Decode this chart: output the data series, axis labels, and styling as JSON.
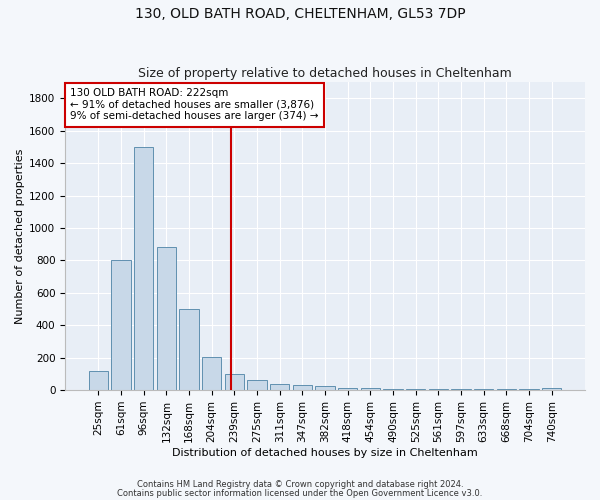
{
  "title1": "130, OLD BATH ROAD, CHELTENHAM, GL53 7DP",
  "title2": "Size of property relative to detached houses in Cheltenham",
  "xlabel": "Distribution of detached houses by size in Cheltenham",
  "ylabel": "Number of detached properties",
  "categories": [
    "25sqm",
    "61sqm",
    "96sqm",
    "132sqm",
    "168sqm",
    "204sqm",
    "239sqm",
    "275sqm",
    "311sqm",
    "347sqm",
    "382sqm",
    "418sqm",
    "454sqm",
    "490sqm",
    "525sqm",
    "561sqm",
    "597sqm",
    "633sqm",
    "668sqm",
    "704sqm",
    "740sqm"
  ],
  "values": [
    120,
    800,
    1500,
    880,
    500,
    205,
    100,
    65,
    40,
    30,
    25,
    10,
    10,
    5,
    5,
    5,
    5,
    5,
    5,
    5,
    10
  ],
  "bar_color": "#c8d8e8",
  "bar_edge_color": "#6090b0",
  "vline_color": "#cc0000",
  "annotation_text": "130 OLD BATH ROAD: 222sqm\n← 91% of detached houses are smaller (3,876)\n9% of semi-detached houses are larger (374) →",
  "annotation_box_color": "#ffffff",
  "annotation_box_edge_color": "#cc0000",
  "ylim": [
    0,
    1900
  ],
  "yticks": [
    0,
    200,
    400,
    600,
    800,
    1000,
    1200,
    1400,
    1600,
    1800
  ],
  "footer1": "Contains HM Land Registry data © Crown copyright and database right 2024.",
  "footer2": "Contains public sector information licensed under the Open Government Licence v3.0.",
  "bg_color": "#f4f7fb",
  "plot_bg_color": "#e8eef6",
  "grid_color": "#ffffff",
  "title1_fontsize": 10,
  "title2_fontsize": 9,
  "xlabel_fontsize": 8,
  "ylabel_fontsize": 8,
  "tick_fontsize": 7.5,
  "annotation_fontsize": 7.5,
  "footer_fontsize": 6
}
